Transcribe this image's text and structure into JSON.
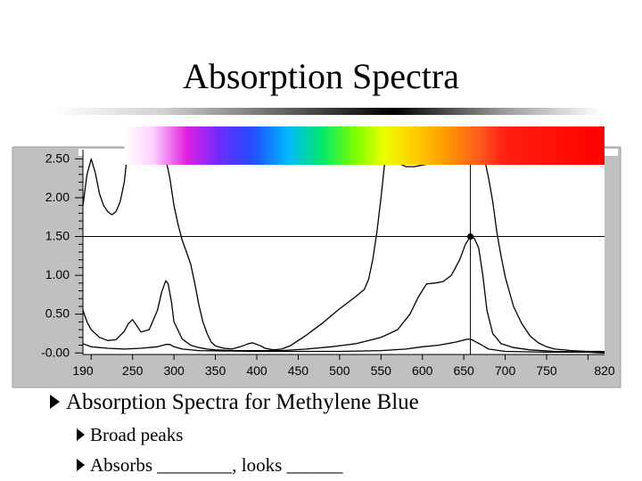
{
  "slide": {
    "title": "Absorption Spectra",
    "bullets": [
      {
        "text": "Absorption Spectra for Methylene Blue",
        "level": 1
      },
      {
        "text": "Broad peaks",
        "level": 2
      },
      {
        "text": "Absorbs ________, looks ______",
        "level": 2
      }
    ]
  },
  "chart_data": {
    "type": "line",
    "title": "",
    "xlabel": "",
    "ylabel": "",
    "xlim": [
      190,
      820
    ],
    "ylim": [
      -0.02,
      2.55
    ],
    "x_ticks": [
      "190",
      "250",
      "300",
      "350",
      "400",
      "450",
      "500",
      "550",
      "600",
      "650",
      "700",
      "750",
      "820"
    ],
    "y_ticks": [
      "2.50",
      "2.00",
      "1.50",
      "1.00",
      "0.50",
      "-0.00"
    ],
    "grid": false,
    "legend": "none",
    "colors": {
      "panel": "#c0c0c0",
      "plot_bg": "#ffffff",
      "line": "#000000"
    },
    "spectrum_band": {
      "x_range": [
        240,
        820
      ]
    },
    "cursor": {
      "x": 658,
      "y": 1.5
    },
    "series": [
      {
        "values": [
          [
            190,
            1.9
          ],
          [
            195,
            2.3
          ],
          [
            200,
            2.5
          ],
          [
            205,
            2.32
          ],
          [
            210,
            2.05
          ],
          [
            215,
            1.9
          ],
          [
            220,
            1.82
          ],
          [
            225,
            1.78
          ],
          [
            230,
            1.82
          ],
          [
            235,
            1.95
          ],
          [
            240,
            2.2
          ],
          [
            243,
            2.5
          ]
        ]
      },
      {
        "values": [
          [
            290,
            2.5
          ],
          [
            295,
            2.25
          ],
          [
            300,
            1.9
          ],
          [
            305,
            1.65
          ],
          [
            310,
            1.45
          ],
          [
            315,
            1.3
          ],
          [
            320,
            1.15
          ],
          [
            325,
            0.9
          ],
          [
            330,
            0.62
          ],
          [
            335,
            0.4
          ],
          [
            340,
            0.25
          ],
          [
            345,
            0.14
          ],
          [
            350,
            0.09
          ],
          [
            360,
            0.06
          ],
          [
            370,
            0.05
          ],
          [
            380,
            0.08
          ],
          [
            390,
            0.12
          ],
          [
            395,
            0.13
          ],
          [
            400,
            0.11
          ],
          [
            405,
            0.09
          ],
          [
            410,
            0.06
          ],
          [
            420,
            0.04
          ],
          [
            430,
            0.05
          ],
          [
            440,
            0.09
          ],
          [
            450,
            0.16
          ],
          [
            460,
            0.23
          ],
          [
            470,
            0.31
          ],
          [
            480,
            0.39
          ],
          [
            490,
            0.48
          ],
          [
            500,
            0.57
          ],
          [
            510,
            0.65
          ],
          [
            520,
            0.73
          ],
          [
            530,
            0.82
          ],
          [
            535,
            0.95
          ],
          [
            540,
            1.2
          ],
          [
            545,
            1.55
          ],
          [
            550,
            2.0
          ],
          [
            555,
            2.5
          ]
        ]
      },
      {
        "values": [
          [
            190,
            0.55
          ],
          [
            195,
            0.4
          ],
          [
            200,
            0.3
          ],
          [
            210,
            0.2
          ],
          [
            220,
            0.16
          ],
          [
            230,
            0.17
          ],
          [
            240,
            0.28
          ],
          [
            245,
            0.38
          ],
          [
            250,
            0.43
          ],
          [
            255,
            0.35
          ],
          [
            260,
            0.27
          ],
          [
            270,
            0.3
          ],
          [
            280,
            0.55
          ],
          [
            285,
            0.78
          ],
          [
            290,
            0.93
          ],
          [
            293,
            0.89
          ],
          [
            297,
            0.65
          ],
          [
            300,
            0.4
          ],
          [
            310,
            0.18
          ],
          [
            320,
            0.1
          ],
          [
            330,
            0.07
          ],
          [
            340,
            0.05
          ],
          [
            350,
            0.04
          ],
          [
            370,
            0.03
          ],
          [
            400,
            0.03
          ],
          [
            430,
            0.03
          ],
          [
            460,
            0.05
          ],
          [
            490,
            0.08
          ],
          [
            520,
            0.12
          ],
          [
            550,
            0.2
          ],
          [
            570,
            0.3
          ],
          [
            585,
            0.5
          ],
          [
            595,
            0.72
          ],
          [
            605,
            0.89
          ],
          [
            615,
            0.9
          ],
          [
            625,
            0.92
          ],
          [
            635,
            1.0
          ],
          [
            645,
            1.2
          ],
          [
            652,
            1.4
          ],
          [
            658,
            1.5
          ],
          [
            663,
            1.47
          ],
          [
            668,
            1.35
          ],
          [
            673,
            1.0
          ],
          [
            678,
            0.55
          ],
          [
            685,
            0.25
          ],
          [
            695,
            0.12
          ],
          [
            710,
            0.07
          ],
          [
            730,
            0.04
          ],
          [
            760,
            0.02
          ],
          [
            800,
            0.01
          ],
          [
            820,
            0.01
          ]
        ]
      },
      {
        "values": [
          [
            190,
            0.12
          ],
          [
            200,
            0.08
          ],
          [
            220,
            0.06
          ],
          [
            240,
            0.05
          ],
          [
            260,
            0.06
          ],
          [
            280,
            0.08
          ],
          [
            290,
            0.11
          ],
          [
            295,
            0.11
          ],
          [
            300,
            0.08
          ],
          [
            310,
            0.05
          ],
          [
            330,
            0.03
          ],
          [
            400,
            0.02
          ],
          [
            450,
            0.02
          ],
          [
            500,
            0.02
          ],
          [
            550,
            0.03
          ],
          [
            580,
            0.05
          ],
          [
            600,
            0.08
          ],
          [
            620,
            0.1
          ],
          [
            640,
            0.14
          ],
          [
            655,
            0.18
          ],
          [
            660,
            0.17
          ],
          [
            665,
            0.14
          ],
          [
            672,
            0.1
          ],
          [
            680,
            0.05
          ],
          [
            700,
            0.02
          ],
          [
            750,
            0.01
          ],
          [
            800,
            0.01
          ],
          [
            820,
            0.0
          ]
        ]
      },
      {
        "values": [
          [
            550,
            2.5
          ],
          [
            560,
            2.48
          ],
          [
            570,
            2.45
          ],
          [
            580,
            2.4
          ],
          [
            590,
            2.4
          ],
          [
            600,
            2.42
          ],
          [
            610,
            2.44
          ],
          [
            620,
            2.47
          ],
          [
            625,
            2.5
          ]
        ]
      },
      {
        "values": [
          [
            675,
            2.5
          ],
          [
            680,
            2.25
          ],
          [
            685,
            1.95
          ],
          [
            690,
            1.55
          ],
          [
            695,
            1.25
          ],
          [
            700,
            0.98
          ],
          [
            710,
            0.6
          ],
          [
            720,
            0.38
          ],
          [
            730,
            0.22
          ],
          [
            740,
            0.13
          ],
          [
            750,
            0.08
          ],
          [
            760,
            0.05
          ],
          [
            780,
            0.03
          ],
          [
            800,
            0.02
          ],
          [
            820,
            0.02
          ]
        ]
      }
    ]
  }
}
